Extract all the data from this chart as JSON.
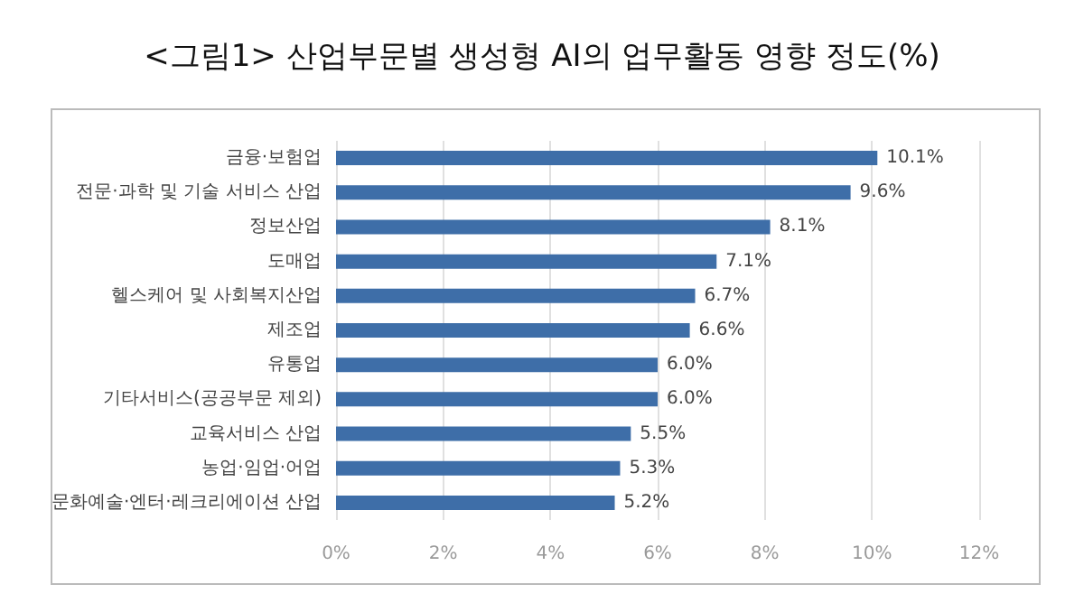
{
  "chart_data": {
    "type": "bar",
    "orientation": "horizontal",
    "title": "<그림1> 산업부문별 생성형 AI의 업무활동 영향 정도(%)",
    "categories": [
      "금융·보험업",
      "전문·과학 및 기술 서비스 산업",
      "정보산업",
      "도매업",
      "헬스케어 및 사회복지산업",
      "제조업",
      "유통업",
      "기타서비스(공공부문 제외)",
      "교육서비스 산업",
      "농업·임업·어업",
      "문화예술·엔터·레크리에이션 산업"
    ],
    "values": [
      10.1,
      9.6,
      8.1,
      7.1,
      6.7,
      6.6,
      6.0,
      6.0,
      5.5,
      5.3,
      5.2
    ],
    "value_labels": [
      "10.1%",
      "9.6%",
      "8.1%",
      "7.1%",
      "6.7%",
      "6.6%",
      "6.0%",
      "6.0%",
      "5.5%",
      "5.3%",
      "5.2%"
    ],
    "color": "#3e6ea8",
    "xlim": [
      0,
      12
    ],
    "xticks": [
      {
        "value": 0,
        "label": "0%"
      },
      {
        "value": 2,
        "label": "2%"
      },
      {
        "value": 4,
        "label": "4%"
      },
      {
        "value": 6,
        "label": "6%"
      },
      {
        "value": 8,
        "label": "8%"
      },
      {
        "value": 10,
        "label": "10%"
      },
      {
        "value": 12,
        "label": "12%"
      }
    ],
    "grid": "x"
  }
}
